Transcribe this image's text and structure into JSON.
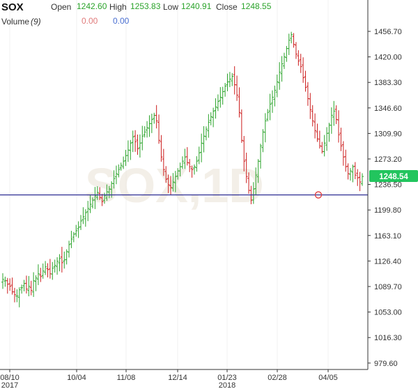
{
  "header": {
    "symbol": "SOX",
    "open_label": "Open",
    "open": "1242.60",
    "high_label": "High",
    "high": "1253.83",
    "low_label": "Low",
    "low": "1240.91",
    "close_label": "Close",
    "close": "1248.55",
    "volume_label": "Volume",
    "volume_period": "(9)",
    "volume_value_1": "0.00",
    "volume_value_2": "0.00"
  },
  "watermark": "SOX,1D",
  "price_badge": "1248.54",
  "colors": {
    "up": "#2aa32a",
    "down": "#cc1d1d",
    "trendline": "#3a3a9a",
    "badge": "#22c55e",
    "marker": "#e23b3b"
  },
  "chart_data": {
    "type": "ohlc",
    "y_ticks": [
      "1456.70",
      "1420.00",
      "1383.30",
      "1346.60",
      "1309.90",
      "1273.20",
      "1236.50",
      "1199.80",
      "1163.10",
      "1126.40",
      "1089.70",
      "1053.00",
      "1016.30",
      "979.60"
    ],
    "x_ticks": [
      {
        "label": "08/10",
        "sub": "2017"
      },
      {
        "label": "10/04",
        "sub": ""
      },
      {
        "label": "11/08",
        "sub": ""
      },
      {
        "label": "12/14",
        "sub": ""
      },
      {
        "label": "01/23",
        "sub": "2018"
      },
      {
        "label": "02/28",
        "sub": ""
      },
      {
        "label": "04/05",
        "sub": ""
      }
    ],
    "ylim": [
      979.6,
      1456.7
    ],
    "horizontal_line": 1221.5,
    "close_series": [
      1100,
      1098,
      1093,
      1090,
      1082,
      1078,
      1076,
      1085,
      1088,
      1094,
      1086,
      1090,
      1084,
      1098,
      1102,
      1108,
      1104,
      1112,
      1118,
      1114,
      1108,
      1116,
      1120,
      1126,
      1130,
      1124,
      1128,
      1140,
      1150,
      1158,
      1165,
      1170,
      1175,
      1184,
      1190,
      1196,
      1202,
      1208,
      1214,
      1220,
      1225,
      1218,
      1212,
      1220,
      1226,
      1230,
      1238,
      1245,
      1252,
      1258,
      1264,
      1270,
      1278,
      1286,
      1296,
      1305,
      1298,
      1288,
      1296,
      1306,
      1312,
      1318,
      1324,
      1330,
      1336,
      1328,
      1300,
      1276,
      1258,
      1244,
      1236,
      1232,
      1240,
      1248,
      1256,
      1262,
      1270,
      1276,
      1268,
      1262,
      1258,
      1262,
      1270,
      1282,
      1296,
      1306,
      1316,
      1326,
      1334,
      1342,
      1348,
      1356,
      1362,
      1370,
      1378,
      1384,
      1388,
      1392,
      1380,
      1365,
      1340,
      1300,
      1270,
      1248,
      1228,
      1214,
      1230,
      1250,
      1270,
      1292,
      1312,
      1328,
      1340,
      1352,
      1362,
      1372,
      1384,
      1398,
      1410,
      1420,
      1432,
      1444,
      1452,
      1438,
      1424,
      1414,
      1406,
      1390,
      1376,
      1360,
      1344,
      1328,
      1314,
      1302,
      1292,
      1284,
      1296,
      1310,
      1322,
      1336,
      1342,
      1330,
      1308,
      1292,
      1276,
      1262,
      1252,
      1256,
      1262,
      1250,
      1246,
      1240,
      1248
    ]
  }
}
